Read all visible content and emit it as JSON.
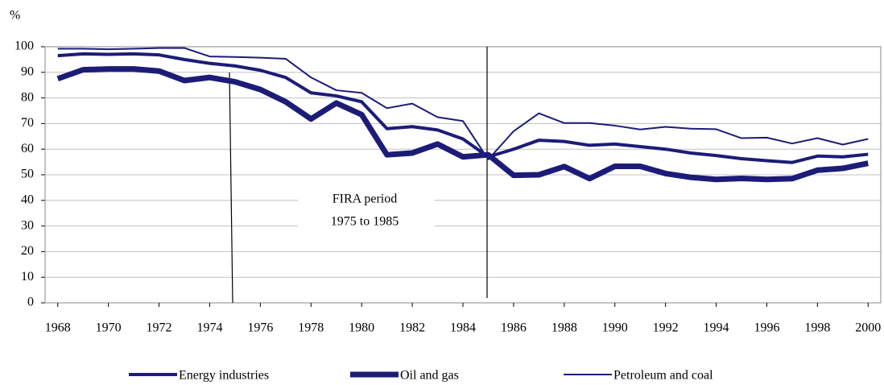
{
  "chart_data": {
    "type": "line",
    "ylabel": "%",
    "annotation": [
      "FIRA period",
      "1975 to 1985"
    ],
    "x": [
      1968,
      1969,
      1970,
      1971,
      1972,
      1973,
      1974,
      1975,
      1976,
      1977,
      1978,
      1979,
      1980,
      1981,
      1982,
      1983,
      1984,
      1985,
      1986,
      1987,
      1988,
      1989,
      1990,
      1991,
      1992,
      1993,
      1994,
      1995,
      1996,
      1997,
      1998,
      1999,
      2000
    ],
    "xlim": [
      1967.5,
      2000.5
    ],
    "xticks": [
      1968,
      1970,
      1972,
      1974,
      1976,
      1978,
      1980,
      1982,
      1984,
      1986,
      1988,
      1990,
      1992,
      1994,
      1996,
      1998,
      2000
    ],
    "ylim": [
      0,
      100
    ],
    "yticks": [
      0,
      10,
      20,
      30,
      40,
      50,
      60,
      70,
      80,
      90,
      100
    ],
    "grid": true,
    "legend": "bottom",
    "series": [
      {
        "name": "Energy industries",
        "color": "#1c1c78",
        "width": 4,
        "values": [
          96.5,
          97.2,
          97,
          97.2,
          96.8,
          95,
          93.5,
          92.5,
          90.8,
          88,
          82,
          80.8,
          78.5,
          68,
          68.8,
          67.5,
          64,
          57,
          60,
          63.5,
          63,
          61.5,
          62,
          61,
          60,
          58.5,
          57.5,
          56.3,
          55.5,
          54.8,
          57.3,
          57,
          58
        ]
      },
      {
        "name": "Oil and gas",
        "color": "#1c1c78",
        "width": 7,
        "values": [
          87.5,
          91,
          91.3,
          91.3,
          90.5,
          86.8,
          88,
          86.3,
          83.3,
          78.5,
          71.8,
          78,
          73.5,
          57.8,
          58.5,
          62,
          57,
          57.8,
          49.8,
          50,
          53.2,
          48.5,
          53.3,
          53.3,
          50.5,
          49,
          48.2,
          48.6,
          48.2,
          48.5,
          51.8,
          52.5,
          54.5
        ]
      },
      {
        "name": "Petroleum and coal",
        "color": "#1c1c78",
        "width": 2,
        "values": [
          99.2,
          99.2,
          99,
          99.2,
          99.5,
          99.5,
          96.2,
          96,
          95.7,
          95.3,
          88,
          83,
          82,
          76,
          77.8,
          72.5,
          71,
          56,
          67,
          74,
          70.2,
          70.2,
          69.2,
          67.7,
          68.7,
          68,
          67.8,
          64.3,
          64.5,
          62.2,
          64.3,
          61.8,
          64
        ]
      }
    ]
  }
}
